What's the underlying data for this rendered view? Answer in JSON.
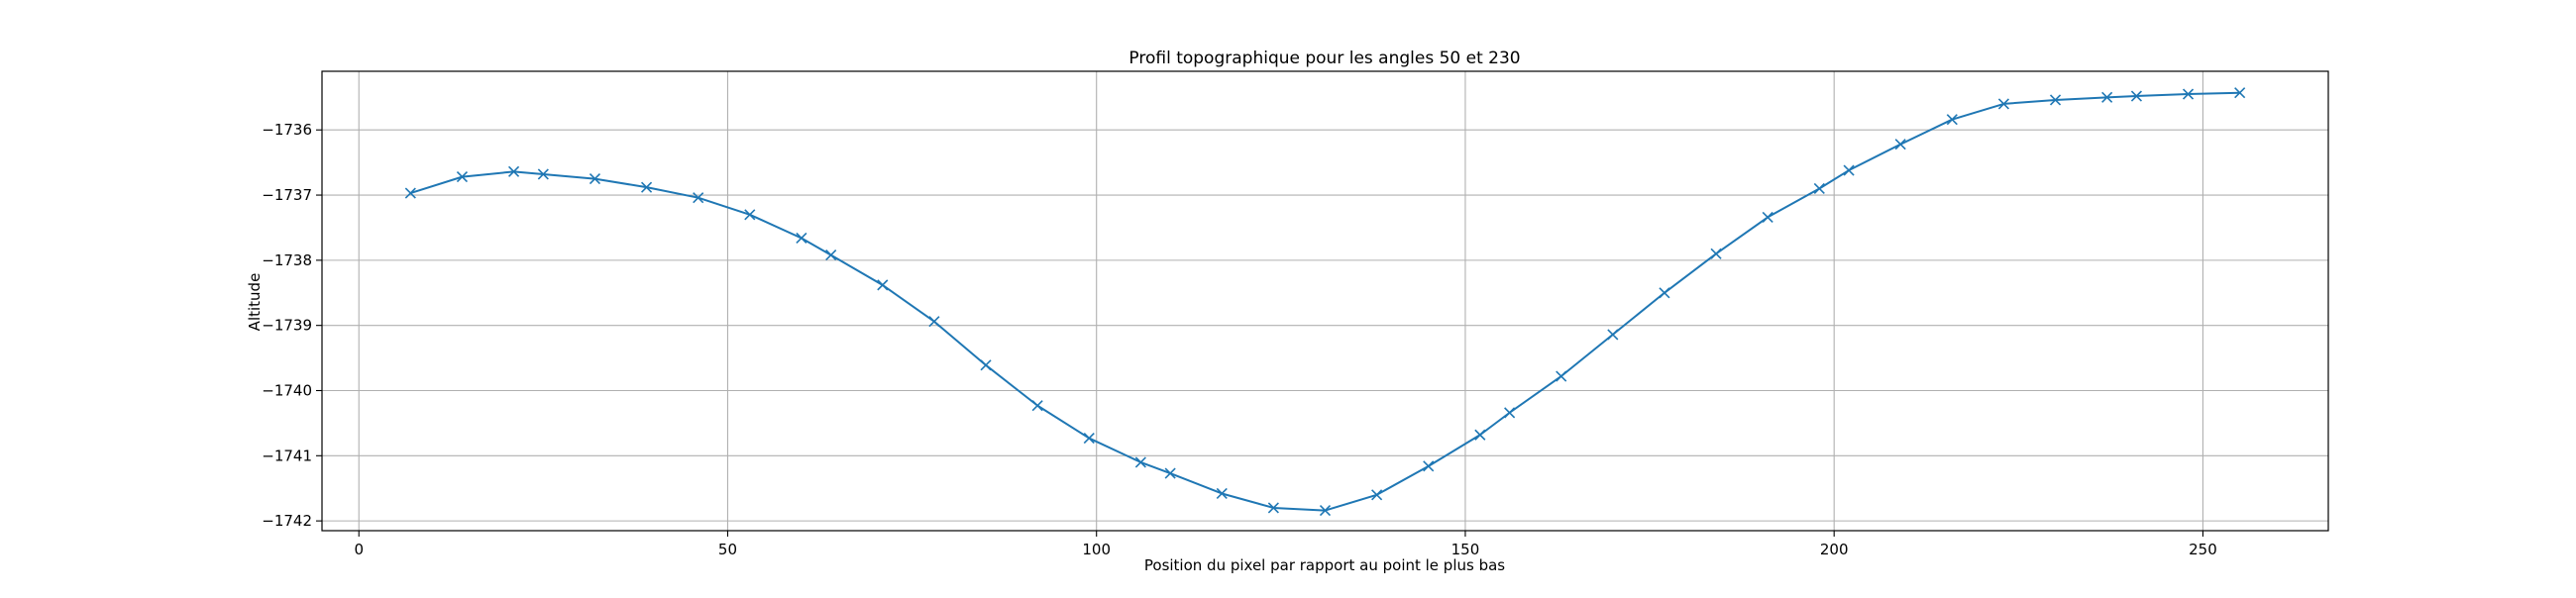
{
  "chart_data": {
    "type": "line",
    "title": "Profil topographique pour les angles 50 et 230",
    "xlabel": "Position du pixel par rapport au point le plus bas",
    "ylabel": "Altitude",
    "xlim": [
      -5,
      267
    ],
    "ylim": [
      -1742.15,
      -1735.1
    ],
    "xticks": [
      0,
      50,
      100,
      150,
      200,
      250
    ],
    "yticks": [
      -1742,
      -1741,
      -1740,
      -1739,
      -1738,
      -1737,
      -1736
    ],
    "grid": true,
    "marker": "x",
    "color": "#1f77b4",
    "series": [
      {
        "x": [
          7,
          14,
          21,
          25,
          32,
          39,
          46,
          53,
          60,
          64,
          71,
          78,
          85,
          92,
          99,
          106,
          110,
          117,
          124,
          131,
          138,
          145,
          152,
          156,
          163,
          170,
          177,
          184,
          191,
          198,
          202,
          209,
          216,
          223,
          230,
          237,
          241,
          248,
          255
        ],
        "y": [
          -1736.97,
          -1736.72,
          -1736.64,
          -1736.68,
          -1736.75,
          -1736.88,
          -1737.04,
          -1737.3,
          -1737.66,
          -1737.92,
          -1738.38,
          -1738.94,
          -1739.61,
          -1740.23,
          -1740.73,
          -1741.1,
          -1741.27,
          -1741.58,
          -1741.8,
          -1741.84,
          -1741.6,
          -1741.16,
          -1740.68,
          -1740.34,
          -1739.78,
          -1739.14,
          -1738.5,
          -1737.9,
          -1737.34,
          -1736.9,
          -1736.62,
          -1736.22,
          -1735.84,
          -1735.6,
          -1735.54,
          -1735.5,
          -1735.48,
          -1735.45,
          -1735.43
        ]
      }
    ]
  }
}
